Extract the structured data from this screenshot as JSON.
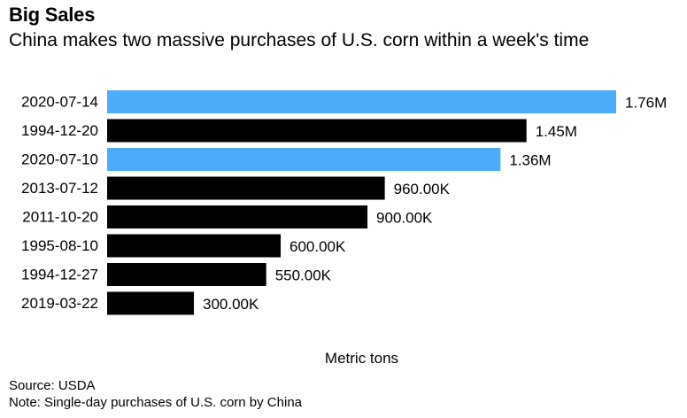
{
  "header": {
    "title": "Big Sales",
    "subtitle": "China makes two massive purchases of U.S. corn within a week's time"
  },
  "footer": {
    "source": "Source: USDA",
    "note": "Note: Single-day purchases of U.S. corn by China"
  },
  "colors": {
    "highlight": "#4dabf7",
    "default": "#000000"
  },
  "chart_data": {
    "type": "bar",
    "orientation": "horizontal",
    "title": "Big Sales",
    "subtitle": "China makes two massive purchases of U.S. corn within a week's time",
    "xlabel": "Metric tons",
    "ylabel": "",
    "grid": false,
    "xlim": [
      0,
      1760000
    ],
    "categories": [
      "2020-07-14",
      "1994-12-20",
      "2020-07-10",
      "2013-07-12",
      "2011-10-20",
      "1995-08-10",
      "1994-12-27",
      "2019-03-22"
    ],
    "values": [
      1760000,
      1450000,
      1360000,
      960000,
      900000,
      600000,
      550000,
      300000
    ],
    "value_labels": [
      "1.76M",
      "1.45M",
      "1.36M",
      "960.00K",
      "900.00K",
      "600.00K",
      "550.00K",
      "300.00K"
    ],
    "highlighted": [
      true,
      false,
      true,
      false,
      false,
      false,
      false,
      false
    ]
  }
}
